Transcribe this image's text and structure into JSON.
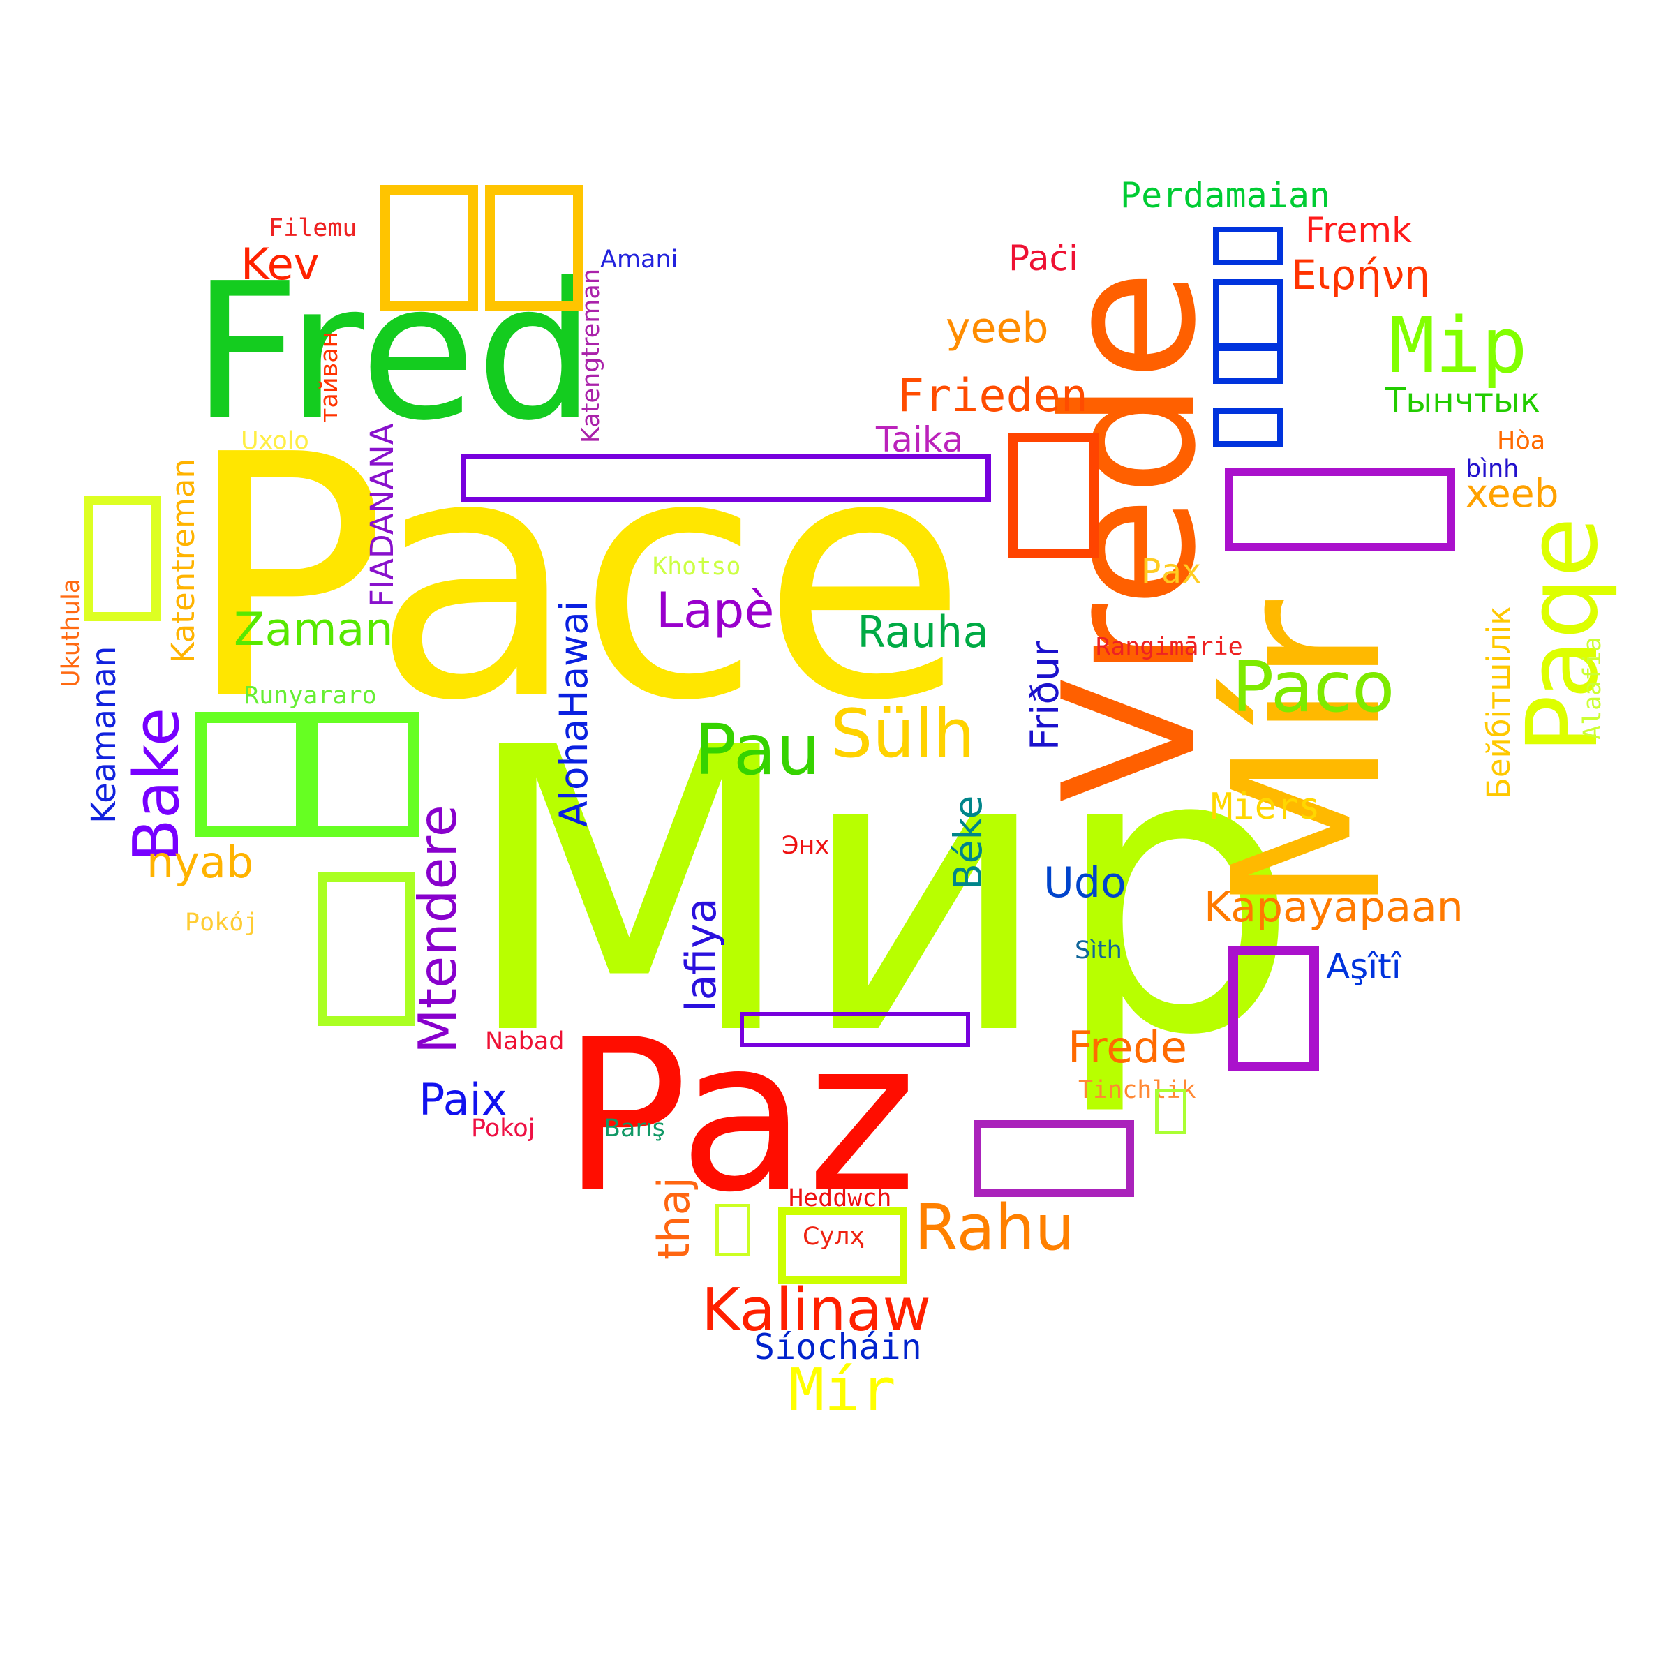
{
  "words": [
    {
      "text": "Мир",
      "color": "#b8ff00"
    },
    {
      "text": "Pace",
      "color": "#ffe600"
    },
    {
      "text": "Paz",
      "color": "#ff0d00"
    },
    {
      "text": "Fred",
      "color": "#14cc1f"
    },
    {
      "text": "Vrede",
      "color": "#ff6000"
    },
    {
      "text": "Mír",
      "color": "#ffb900"
    },
    {
      "text": "Paqe",
      "color": "#ddff00"
    },
    {
      "text": "Mip",
      "color": "#82ff00"
    },
    {
      "text": "Paco",
      "color": "#7eea00"
    },
    {
      "text": "Pau",
      "color": "#36d300"
    },
    {
      "text": "Sülh",
      "color": "#ffd200"
    },
    {
      "text": "Rahu",
      "color": "#ff8000"
    },
    {
      "text": "Kalinaw",
      "color": "#ff2000"
    },
    {
      "text": "Mír",
      "color": "#ffff00"
    },
    {
      "text": "Frieden",
      "color": "#ff4c00"
    },
    {
      "text": "Rauha",
      "color": "#00aa44"
    },
    {
      "text": "Lapè",
      "color": "#9900cc"
    },
    {
      "text": "Zaman",
      "color": "#57e800"
    },
    {
      "text": "Bake",
      "color": "#7700ff"
    },
    {
      "text": "Mtendere",
      "color": "#8800cc"
    },
    {
      "text": "AlohaHawai",
      "color": "#0a20e0"
    },
    {
      "text": "lafiya",
      "color": "#2a10dd"
    },
    {
      "text": "Udo",
      "color": "#0044cc"
    },
    {
      "text": "Béke",
      "color": "#00858a"
    },
    {
      "text": "Friður",
      "color": "#1b11cc"
    },
    {
      "text": "Paix",
      "color": "#1111ee"
    },
    {
      "text": "nyab",
      "color": "#ffb300"
    },
    {
      "text": "Kev",
      "color": "#ff2200"
    },
    {
      "text": "yeeb",
      "color": "#ff8c00"
    },
    {
      "text": "xeeb",
      "color": "#ffa100"
    },
    {
      "text": "Perdamaian",
      "color": "#00cc33"
    },
    {
      "text": "Fremk",
      "color": "#ff1a1a"
    },
    {
      "text": "Paċi",
      "color": "#ee1133"
    },
    {
      "text": "Ειρήνη",
      "color": "#ff3300"
    },
    {
      "text": "Тынчтык",
      "color": "#22cc00"
    },
    {
      "text": "Taika",
      "color": "#bb22bb"
    },
    {
      "text": "Kapayapaan",
      "color": "#ff7a00"
    },
    {
      "text": "Frede",
      "color": "#ff6a00"
    },
    {
      "text": "Miers",
      "color": "#ffd700"
    },
    {
      "text": "Aşîtî",
      "color": "#0033dd"
    },
    {
      "text": "Бейбітшілік",
      "color": "#ffc800"
    },
    {
      "text": "Alaafia",
      "color": "#ccff33"
    },
    {
      "text": "Hòa",
      "color": "#ff6a00"
    },
    {
      "text": "bình",
      "color": "#2211cc"
    },
    {
      "text": "Pax",
      "color": "#ffcc22"
    },
    {
      "text": "Rangimārie",
      "color": "#ee2222"
    },
    {
      "text": "Khotso",
      "color": "#ccff44"
    },
    {
      "text": "Runyararo",
      "color": "#66ee33"
    },
    {
      "text": "Keamanan",
      "color": "#1122dd"
    },
    {
      "text": "Katentreman",
      "color": "#ffb300"
    },
    {
      "text": "Katengtreman",
      "color": "#aa22aa"
    },
    {
      "text": "FIADANANA",
      "color": "#8811cc"
    },
    {
      "text": "тайван",
      "color": "#ff3300"
    },
    {
      "text": "Uxolo",
      "color": "#ffee44"
    },
    {
      "text": "Ukuthula",
      "color": "#ff6a11"
    },
    {
      "text": "Filemu",
      "color": "#ee2222"
    },
    {
      "text": "Amani",
      "color": "#2222dd"
    },
    {
      "text": "Pokój",
      "color": "#ffcc33"
    },
    {
      "text": "Pokoj",
      "color": "#ee1144"
    },
    {
      "text": "Nabad",
      "color": "#ee1133"
    },
    {
      "text": "Barış",
      "color": "#119966"
    },
    {
      "text": "Heddwch",
      "color": "#ee1111"
    },
    {
      "text": "Сулҳ",
      "color": "#ee2211"
    },
    {
      "text": "Síocháin",
      "color": "#0022cc"
    },
    {
      "text": "Энх",
      "color": "#ee1111"
    },
    {
      "text": "Sìth",
      "color": "#116699"
    },
    {
      "text": "Tinchlik",
      "color": "#ff8833"
    },
    {
      "text": "thaj",
      "color": "#ff6611"
    }
  ],
  "glyph_boxes": [
    {
      "color": "#ffc400"
    },
    {
      "color": "#ffc400"
    },
    {
      "color": "#66ff22"
    },
    {
      "color": "#66ff22"
    },
    {
      "color": "#ddff22"
    },
    {
      "color": "#aaff22"
    },
    {
      "color": "#ff4400"
    },
    {
      "color": "#0033dd"
    },
    {
      "color": "#0033dd"
    },
    {
      "color": "#0033dd"
    },
    {
      "color": "#0033dd"
    },
    {
      "color": "#aa11cc"
    },
    {
      "color": "#aa11cc"
    },
    {
      "color": "#aa22bb"
    },
    {
      "color": "#ccff00"
    },
    {
      "color": "#7700dd"
    },
    {
      "color": "#7700dd"
    },
    {
      "color": "#aaff33"
    },
    {
      "color": "#ccff22"
    }
  ]
}
